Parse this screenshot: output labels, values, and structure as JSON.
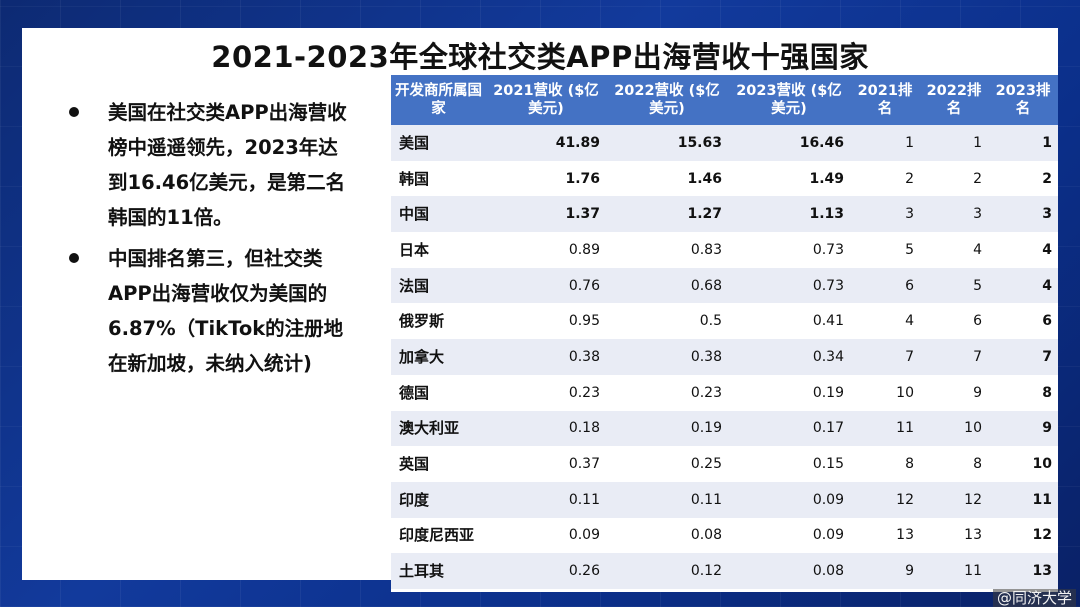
{
  "title": "2021-2023年全球社交类APP出海营收十强国家",
  "bullets": [
    "美国在社交类APP出海营收榜中遥遥领先，2023年达到16.46亿美元，是第二名韩国的11倍。",
    "中国排名第三，但社交类APP出海营收仅为美国的6.87%（TikTok的注册地在新加坡，未纳入统计)"
  ],
  "table": {
    "headers": [
      "开发商所属国家",
      "2021营收 ($亿美元)",
      "2022营收 ($亿美元)",
      "2023营收 ($亿美元)",
      "2021排名",
      "2022排名",
      "2023排名"
    ],
    "rows": [
      [
        "美国",
        "41.89",
        "15.63",
        "16.46",
        "1",
        "1",
        "1"
      ],
      [
        "韩国",
        "1.76",
        "1.46",
        "1.49",
        "2",
        "2",
        "2"
      ],
      [
        "中国",
        "1.37",
        "1.27",
        "1.13",
        "3",
        "3",
        "3"
      ],
      [
        "日本",
        "0.89",
        "0.83",
        "0.73",
        "5",
        "4",
        "4"
      ],
      [
        "法国",
        "0.76",
        "0.68",
        "0.73",
        "6",
        "5",
        "4"
      ],
      [
        "俄罗斯",
        "0.95",
        "0.5",
        "0.41",
        "4",
        "6",
        "6"
      ],
      [
        "加拿大",
        "0.38",
        "0.38",
        "0.34",
        "7",
        "7",
        "7"
      ],
      [
        "德国",
        "0.23",
        "0.23",
        "0.19",
        "10",
        "9",
        "8"
      ],
      [
        "澳大利亚",
        "0.18",
        "0.19",
        "0.17",
        "11",
        "10",
        "9"
      ],
      [
        "英国",
        "0.37",
        "0.25",
        "0.15",
        "8",
        "8",
        "10"
      ],
      [
        "印度",
        "0.11",
        "0.11",
        "0.09",
        "12",
        "12",
        "11"
      ],
      [
        "印度尼西亚",
        "0.09",
        "0.08",
        "0.09",
        "13",
        "13",
        "12"
      ],
      [
        "土耳其",
        "0.26",
        "0.12",
        "0.08",
        "9",
        "11",
        "13"
      ]
    ]
  },
  "watermark": "@同济大学"
}
